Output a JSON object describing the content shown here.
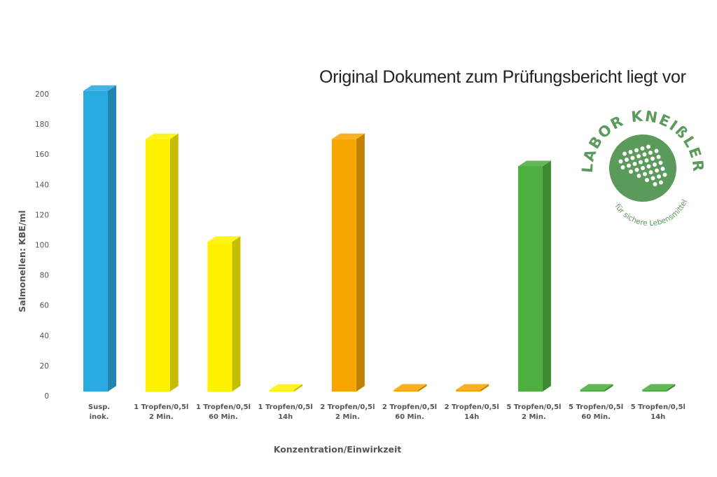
{
  "note": "Original Dokument zum Prüfungsbericht liegt vor",
  "logo": {
    "name": "LABOR KNEIßLER",
    "tagline": "für sichere Lebensmittel",
    "color": "#5a9a5a"
  },
  "chart_data": {
    "type": "bar",
    "title": "",
    "xlabel": "Konzentration/Einwirkzeit",
    "ylabel": "Salmonellen: KBE/ml",
    "ylim": [
      0,
      200
    ],
    "yticks": [
      0,
      20,
      40,
      60,
      80,
      100,
      120,
      140,
      160,
      180,
      200
    ],
    "grid": false,
    "legend": "none",
    "categories": [
      [
        "Susp.",
        "inok."
      ],
      [
        "1 Tropfen/0,5l",
        "2 Min."
      ],
      [
        "1 Tropfen/0,5l",
        "60 Min."
      ],
      [
        "1 Tropfen/0,5l",
        "14h"
      ],
      [
        "2 Tropfen/0,5l",
        "2 Min."
      ],
      [
        "2 Tropfen/0,5l",
        "60 Min."
      ],
      [
        "2 Tropfen/0,5l",
        "14h"
      ],
      [
        "5 Tropfen/0,5l",
        "2 Min."
      ],
      [
        "5 Tropfen/0,5l",
        "60 Min."
      ],
      [
        "5 Tropfen/0,5l",
        "14h"
      ]
    ],
    "values": [
      202,
      170,
      102,
      4,
      170,
      4,
      4,
      152,
      4,
      4
    ],
    "colors": [
      "#29abe2",
      "#fff200",
      "#fff200",
      "#fff200",
      "#f7a600",
      "#f7a600",
      "#f7a600",
      "#4caf3f",
      "#4caf3f",
      "#4caf3f"
    ]
  }
}
